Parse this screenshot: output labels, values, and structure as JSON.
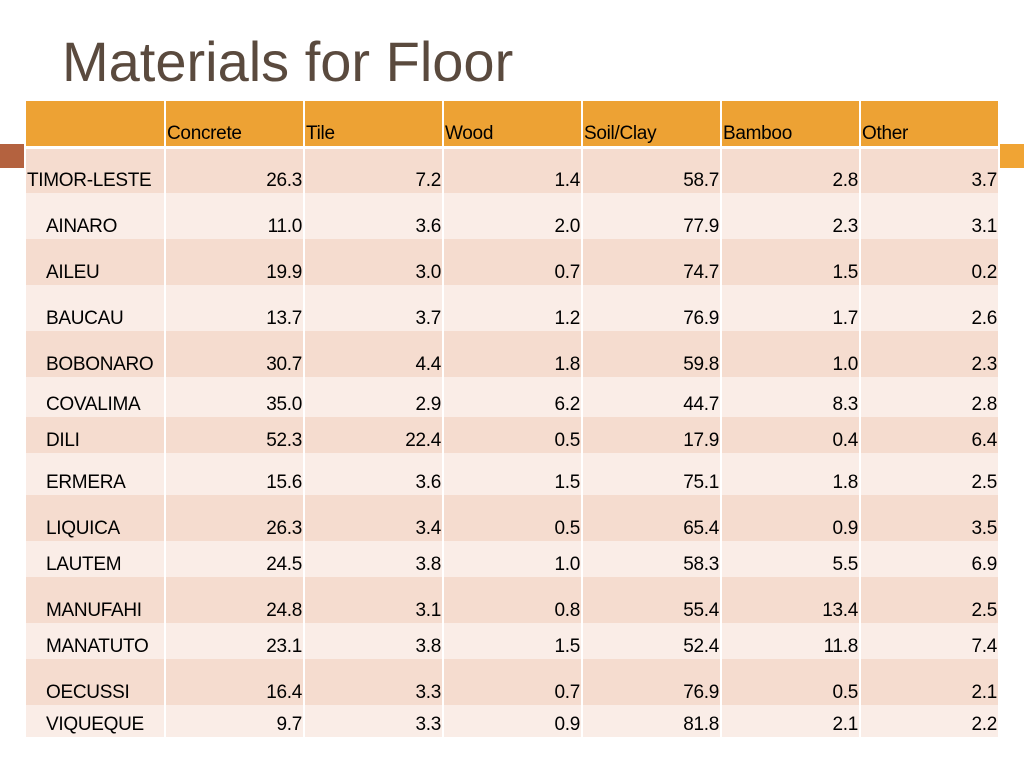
{
  "slide": {
    "title": "Materials for Floor"
  },
  "table": {
    "corner": "",
    "headers": [
      "Concrete",
      "Tile",
      "Wood",
      "Soil/Clay",
      "Bamboo",
      "Other"
    ],
    "rows": [
      {
        "name": "TIMOR-LESTE",
        "values": [
          "26.3",
          "7.2",
          "1.4",
          "58.7",
          "2.8",
          "3.7"
        ]
      },
      {
        "name": "AINARO",
        "values": [
          "11.0",
          "3.6",
          "2.0",
          "77.9",
          "2.3",
          "3.1"
        ]
      },
      {
        "name": "AILEU",
        "values": [
          "19.9",
          "3.0",
          "0.7",
          "74.7",
          "1.5",
          "0.2"
        ]
      },
      {
        "name": "BAUCAU",
        "values": [
          "13.7",
          "3.7",
          "1.2",
          "76.9",
          "1.7",
          "2.6"
        ]
      },
      {
        "name": "BOBONARO",
        "values": [
          "30.7",
          "4.4",
          "1.8",
          "59.8",
          "1.0",
          "2.3"
        ]
      },
      {
        "name": "COVALIMA",
        "values": [
          "35.0",
          "2.9",
          "6.2",
          "44.7",
          "8.3",
          "2.8"
        ]
      },
      {
        "name": "DILI",
        "values": [
          "52.3",
          "22.4",
          "0.5",
          "17.9",
          "0.4",
          "6.4"
        ]
      },
      {
        "name": "ERMERA",
        "values": [
          "15.6",
          "3.6",
          "1.5",
          "75.1",
          "1.8",
          "2.5"
        ]
      },
      {
        "name": "LIQUICA",
        "values": [
          "26.3",
          "3.4",
          "0.5",
          "65.4",
          "0.9",
          "3.5"
        ]
      },
      {
        "name": "LAUTEM",
        "values": [
          "24.5",
          "3.8",
          "1.0",
          "58.3",
          "5.5",
          "6.9"
        ]
      },
      {
        "name": "MANUFAHI",
        "values": [
          "24.8",
          "3.1",
          "0.8",
          "55.4",
          "13.4",
          "2.5"
        ]
      },
      {
        "name": "MANATUTO",
        "values": [
          "23.1",
          "3.8",
          "1.5",
          "52.4",
          "11.8",
          "7.4"
        ]
      },
      {
        "name": "OECUSSI",
        "values": [
          "16.4",
          "3.3",
          "0.7",
          "76.9",
          "0.5",
          "2.1"
        ]
      },
      {
        "name": "VIQUEQUE",
        "values": [
          "9.7",
          "3.3",
          "0.9",
          "81.8",
          "2.1",
          "2.2"
        ]
      }
    ]
  },
  "colors": {
    "title_text": "#5a4a3e",
    "header_fill": "#eda234",
    "row_fill_dark": "#f5dccf",
    "row_fill_light": "#faede7",
    "accent_left": "#b4623f",
    "accent_right": "#f0a434"
  }
}
